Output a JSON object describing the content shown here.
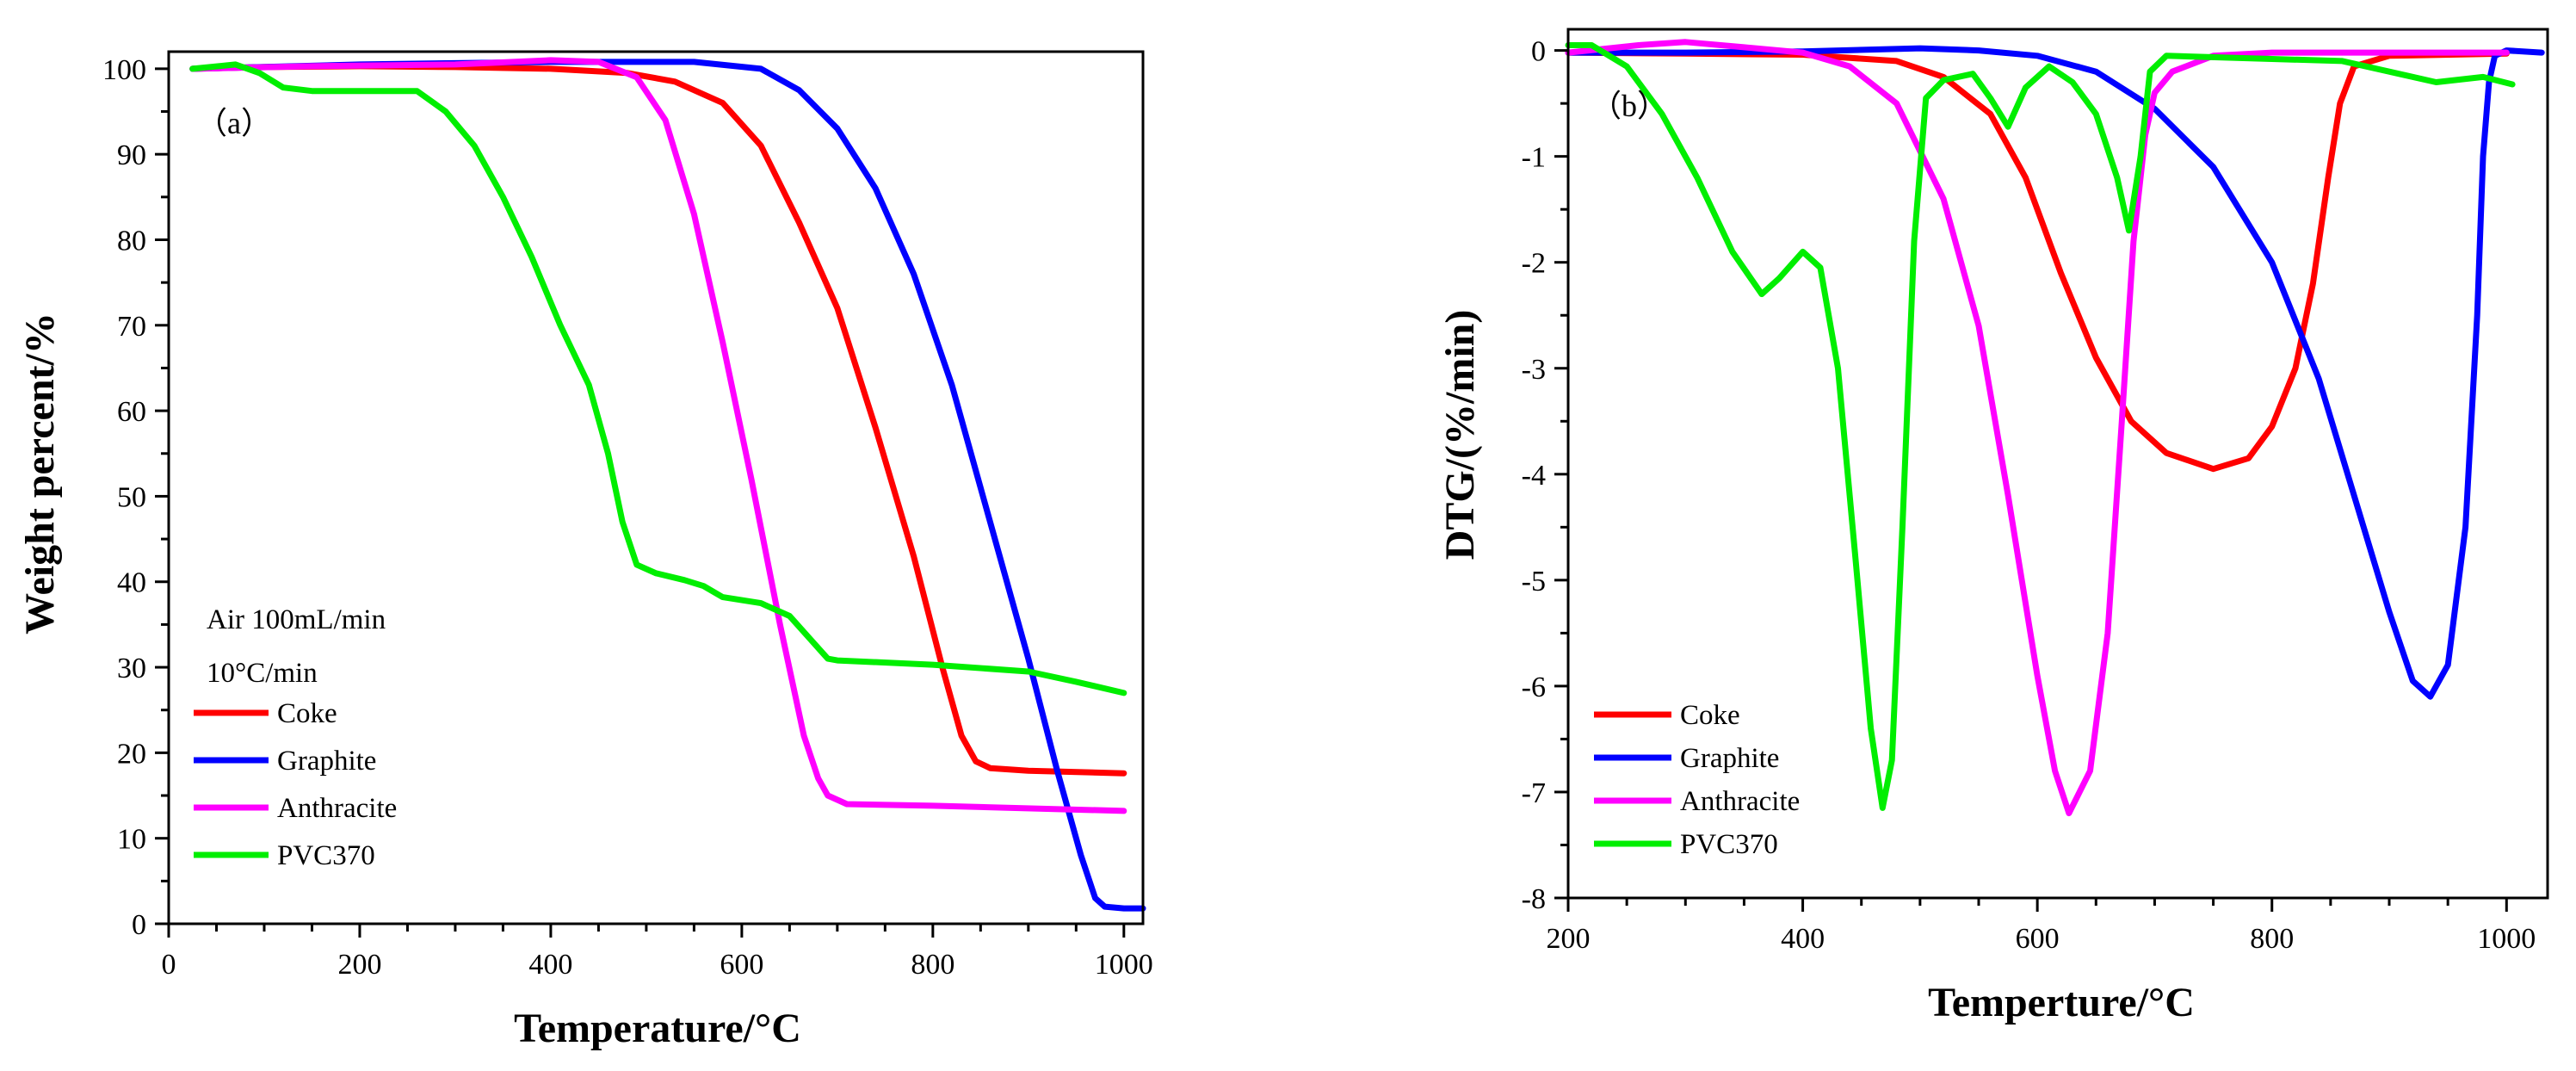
{
  "chart_data": [
    {
      "type": "line",
      "panel_label": "（a）",
      "xlabel": "Temperature/°C",
      "ylabel": "Weight percent/%",
      "xlim": [
        0,
        1020
      ],
      "ylim": [
        0,
        102
      ],
      "xticks": [
        0,
        200,
        400,
        600,
        800,
        1000
      ],
      "yticks": [
        0,
        10,
        20,
        30,
        40,
        50,
        60,
        70,
        80,
        90,
        100
      ],
      "annotations": [
        "Air 100mL/min",
        "10°C/min"
      ],
      "legend_position": "bottom-left",
      "series": [
        {
          "name": "Coke",
          "color": "#ff0000",
          "points": [
            [
              25,
              100
            ],
            [
              100,
              100.2
            ],
            [
              200,
              100.3
            ],
            [
              300,
              100.2
            ],
            [
              400,
              100
            ],
            [
              480,
              99.5
            ],
            [
              530,
              98.5
            ],
            [
              580,
              96
            ],
            [
              620,
              91
            ],
            [
              660,
              82
            ],
            [
              700,
              72
            ],
            [
              740,
              58
            ],
            [
              780,
              43
            ],
            [
              810,
              30
            ],
            [
              830,
              22
            ],
            [
              845,
              19
            ],
            [
              860,
              18.2
            ],
            [
              900,
              17.9
            ],
            [
              1000,
              17.6
            ]
          ]
        },
        {
          "name": "Graphite",
          "color": "#0000ff",
          "points": [
            [
              25,
              100
            ],
            [
              200,
              100.5
            ],
            [
              400,
              100.8
            ],
            [
              550,
              100.8
            ],
            [
              620,
              100
            ],
            [
              660,
              97.5
            ],
            [
              700,
              93
            ],
            [
              740,
              86
            ],
            [
              780,
              76
            ],
            [
              820,
              63
            ],
            [
              860,
              47
            ],
            [
              900,
              31
            ],
            [
              930,
              18
            ],
            [
              955,
              8
            ],
            [
              970,
              3
            ],
            [
              980,
              2
            ],
            [
              1000,
              1.8
            ],
            [
              1020,
              1.8
            ]
          ]
        },
        {
          "name": "Anthracite",
          "color": "#ff00ff",
          "points": [
            [
              25,
              100
            ],
            [
              150,
              100.3
            ],
            [
              300,
              100.5
            ],
            [
              400,
              101
            ],
            [
              450,
              100.8
            ],
            [
              490,
              99
            ],
            [
              520,
              94
            ],
            [
              550,
              83
            ],
            [
              580,
              68
            ],
            [
              610,
              52
            ],
            [
              640,
              35
            ],
            [
              665,
              22
            ],
            [
              680,
              17
            ],
            [
              690,
              15
            ],
            [
              710,
              14
            ],
            [
              800,
              13.8
            ],
            [
              1000,
              13.2
            ]
          ]
        },
        {
          "name": "PVC370",
          "color": "#00ee00",
          "points": [
            [
              25,
              100
            ],
            [
              70,
              100.5
            ],
            [
              95,
              99.5
            ],
            [
              120,
              97.8
            ],
            [
              150,
              97.4
            ],
            [
              200,
              97.4
            ],
            [
              260,
              97.4
            ],
            [
              290,
              95
            ],
            [
              320,
              91
            ],
            [
              350,
              85
            ],
            [
              380,
              78
            ],
            [
              410,
              70
            ],
            [
              440,
              63
            ],
            [
              460,
              55
            ],
            [
              475,
              47
            ],
            [
              490,
              42
            ],
            [
              510,
              41
            ],
            [
              540,
              40.2
            ],
            [
              560,
              39.5
            ],
            [
              580,
              38.2
            ],
            [
              620,
              37.5
            ],
            [
              650,
              36
            ],
            [
              670,
              33.5
            ],
            [
              690,
              31
            ],
            [
              700,
              30.8
            ],
            [
              800,
              30.3
            ],
            [
              900,
              29.5
            ],
            [
              950,
              28.3
            ],
            [
              1000,
              27
            ]
          ]
        }
      ]
    },
    {
      "type": "line",
      "panel_label": "（b）",
      "xlabel": "Temperture/°C",
      "ylabel": "DTG/(%/min)",
      "xlim": [
        200,
        1035
      ],
      "ylim": [
        -8,
        0.2
      ],
      "xticks": [
        200,
        400,
        600,
        800,
        1000
      ],
      "yticks": [
        0,
        -1,
        -2,
        -3,
        -4,
        -5,
        -6,
        -7,
        -8
      ],
      "legend_position": "bottom-left",
      "series": [
        {
          "name": "Coke",
          "color": "#ff0000",
          "points": [
            [
              200,
              -0.02
            ],
            [
              300,
              -0.03
            ],
            [
              400,
              -0.04
            ],
            [
              480,
              -0.1
            ],
            [
              520,
              -0.25
            ],
            [
              560,
              -0.6
            ],
            [
              590,
              -1.2
            ],
            [
              620,
              -2.1
            ],
            [
              650,
              -2.9
            ],
            [
              680,
              -3.5
            ],
            [
              710,
              -3.8
            ],
            [
              750,
              -3.95
            ],
            [
              780,
              -3.85
            ],
            [
              800,
              -3.55
            ],
            [
              820,
              -3
            ],
            [
              835,
              -2.2
            ],
            [
              848,
              -1.2
            ],
            [
              858,
              -0.5
            ],
            [
              870,
              -0.15
            ],
            [
              900,
              -0.05
            ],
            [
              1000,
              -0.03
            ]
          ]
        },
        {
          "name": "Graphite",
          "color": "#0000ff",
          "points": [
            [
              200,
              -0.02
            ],
            [
              300,
              -0.02
            ],
            [
              400,
              -0.01
            ],
            [
              500,
              0.02
            ],
            [
              550,
              0
            ],
            [
              600,
              -0.05
            ],
            [
              650,
              -0.2
            ],
            [
              700,
              -0.55
            ],
            [
              750,
              -1.1
            ],
            [
              800,
              -2
            ],
            [
              840,
              -3.1
            ],
            [
              870,
              -4.2
            ],
            [
              900,
              -5.3
            ],
            [
              920,
              -5.95
            ],
            [
              935,
              -6.1
            ],
            [
              950,
              -5.8
            ],
            [
              965,
              -4.5
            ],
            [
              975,
              -2.5
            ],
            [
              980,
              -1
            ],
            [
              985,
              -0.3
            ],
            [
              990,
              -0.05
            ],
            [
              1000,
              0
            ],
            [
              1030,
              -0.02
            ]
          ]
        },
        {
          "name": "Anthracite",
          "color": "#ff00ff",
          "points": [
            [
              200,
              -0.02
            ],
            [
              260,
              0.05
            ],
            [
              300,
              0.08
            ],
            [
              350,
              0.03
            ],
            [
              400,
              -0.02
            ],
            [
              440,
              -0.15
            ],
            [
              480,
              -0.5
            ],
            [
              520,
              -1.4
            ],
            [
              550,
              -2.6
            ],
            [
              575,
              -4.2
            ],
            [
              600,
              -5.9
            ],
            [
              615,
              -6.8
            ],
            [
              627,
              -7.2
            ],
            [
              645,
              -6.8
            ],
            [
              660,
              -5.5
            ],
            [
              672,
              -3.5
            ],
            [
              682,
              -1.8
            ],
            [
              692,
              -0.8
            ],
            [
              700,
              -0.4
            ],
            [
              715,
              -0.2
            ],
            [
              750,
              -0.05
            ],
            [
              800,
              -0.02
            ],
            [
              1000,
              -0.02
            ]
          ]
        },
        {
          "name": "PVC370",
          "color": "#00ee00",
          "points": [
            [
              200,
              0.05
            ],
            [
              220,
              0.05
            ],
            [
              250,
              -0.15
            ],
            [
              280,
              -0.6
            ],
            [
              310,
              -1.2
            ],
            [
              340,
              -1.9
            ],
            [
              365,
              -2.3
            ],
            [
              380,
              -2.15
            ],
            [
              400,
              -1.9
            ],
            [
              415,
              -2.05
            ],
            [
              430,
              -3
            ],
            [
              445,
              -4.8
            ],
            [
              458,
              -6.4
            ],
            [
              468,
              -7.15
            ],
            [
              476,
              -6.7
            ],
            [
              485,
              -4.5
            ],
            [
              495,
              -1.8
            ],
            [
              505,
              -0.45
            ],
            [
              520,
              -0.28
            ],
            [
              545,
              -0.22
            ],
            [
              560,
              -0.45
            ],
            [
              575,
              -0.72
            ],
            [
              590,
              -0.35
            ],
            [
              610,
              -0.15
            ],
            [
              630,
              -0.3
            ],
            [
              650,
              -0.6
            ],
            [
              668,
              -1.2
            ],
            [
              678,
              -1.7
            ],
            [
              688,
              -1.0
            ],
            [
              696,
              -0.2
            ],
            [
              710,
              -0.05
            ],
            [
              800,
              -0.08
            ],
            [
              860,
              -0.1
            ],
            [
              900,
              -0.2
            ],
            [
              940,
              -0.3
            ],
            [
              980,
              -0.25
            ],
            [
              1005,
              -0.32
            ]
          ]
        }
      ]
    }
  ]
}
